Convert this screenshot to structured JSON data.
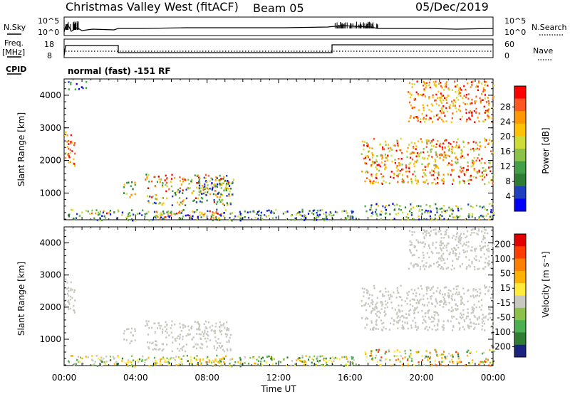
{
  "header": {
    "title": "Christmas Valley West (fitACF)",
    "beam": "Beam 05",
    "date": "05/Dec/2019"
  },
  "top_panels": {
    "nsky_label": "N.Sky",
    "nsearch_label": "N.Search",
    "count_ticks": [
      "10^5",
      "10^0"
    ],
    "freq_label_1": "Freq.",
    "freq_label_2": "[MHz]",
    "freq_ticks": [
      "18",
      "8"
    ],
    "nave_label": "Nave",
    "nave_ticks": [
      "60",
      "0"
    ],
    "cpid_label": "CPID",
    "cpid_text": "normal (fast) -151 RF"
  },
  "colors": {
    "power_scale": [
      "#0000ff",
      "#1f3fbf",
      "#2e7d32",
      "#43a047",
      "#8bc34a",
      "#cddc39",
      "#ffc107",
      "#ff9800",
      "#ff5722",
      "#ff0000"
    ],
    "velocity_scale": [
      "#1a237e",
      "#2e7d32",
      "#4caf50",
      "#8bc34a",
      "#c8c8c0",
      "#ffeb3b",
      "#ffb300",
      "#ff7f00",
      "#ff3d00",
      "#e00000"
    ]
  },
  "chart_data": [
    {
      "type": "heatmap",
      "name": "power",
      "xlabel": "",
      "ylabel": "Slant Range [km]",
      "ytick_labels": [
        "1000",
        "2000",
        "3000",
        "4000"
      ],
      "ylim": [
        180,
        4500
      ],
      "colorbar_label": "Power [dB]",
      "colorbar_ticks": [
        "4",
        "8",
        "12",
        "16",
        "20",
        "24",
        "28"
      ],
      "scatter_regions": [
        {
          "t": [
            0.0,
            0.6
          ],
          "r": [
            1800,
            2900
          ],
          "level": [
            5,
            9
          ]
        },
        {
          "t": [
            3.3,
            4.0
          ],
          "r": [
            900,
            1400
          ],
          "level": [
            2,
            7
          ]
        },
        {
          "t": [
            4.5,
            9.3
          ],
          "r": [
            650,
            1600
          ],
          "level": [
            1,
            9
          ]
        },
        {
          "t": [
            7.5,
            9.5
          ],
          "r": [
            950,
            1500
          ],
          "level": [
            0,
            6
          ]
        },
        {
          "t": [
            1.5,
            2.5
          ],
          "r": [
            400,
            520
          ],
          "level": [
            6,
            9
          ]
        },
        {
          "t": [
            5.0,
            8.8
          ],
          "r": [
            230,
            480
          ],
          "level": [
            6,
            9
          ]
        },
        {
          "t": [
            0.2,
            16.4
          ],
          "r": [
            180,
            520
          ],
          "level": [
            0,
            5
          ]
        },
        {
          "t": [
            16.6,
            24.0
          ],
          "r": [
            1300,
            2700
          ],
          "level": [
            4,
            9
          ]
        },
        {
          "t": [
            19.2,
            24.0
          ],
          "r": [
            3200,
            4450
          ],
          "level": [
            5,
            9
          ]
        },
        {
          "t": [
            16.8,
            24.0
          ],
          "r": [
            200,
            700
          ],
          "level": [
            0,
            6
          ]
        },
        {
          "t": [
            0.2,
            1.2
          ],
          "r": [
            4200,
            4450
          ],
          "level": [
            0,
            3
          ]
        }
      ]
    },
    {
      "type": "heatmap",
      "name": "velocity",
      "xlabel": "Time UT",
      "ylabel": "Slant Range [km]",
      "ytick_labels": [
        "1000",
        "2000",
        "3000",
        "4000"
      ],
      "ylim": [
        180,
        4500
      ],
      "xtick_labels": [
        "00:00",
        "04:00",
        "08:00",
        "12:00",
        "16:00",
        "20:00",
        "00:00"
      ],
      "colorbar_label": "Velocity [m s⁻¹]",
      "colorbar_ticks": [
        "200",
        "100",
        "50",
        "15",
        "-15",
        "-50",
        "-100",
        "-200"
      ],
      "scatter_regions": [
        {
          "t": [
            0.0,
            0.6
          ],
          "r": [
            1800,
            2900
          ],
          "level": [
            4,
            4
          ]
        },
        {
          "t": [
            3.3,
            4.0
          ],
          "r": [
            900,
            1400
          ],
          "level": [
            4,
            4
          ]
        },
        {
          "t": [
            4.5,
            9.3
          ],
          "r": [
            650,
            1600
          ],
          "level": [
            4,
            4
          ]
        },
        {
          "t": [
            1.5,
            3.0
          ],
          "r": [
            300,
            520
          ],
          "level": [
            4,
            4
          ]
        },
        {
          "t": [
            5.0,
            9.0
          ],
          "r": [
            230,
            480
          ],
          "level": [
            5,
            6
          ]
        },
        {
          "t": [
            0.2,
            16.4
          ],
          "r": [
            180,
            520
          ],
          "level": [
            1,
            6
          ]
        },
        {
          "t": [
            16.6,
            24.0
          ],
          "r": [
            1300,
            2700
          ],
          "level": [
            4,
            4
          ]
        },
        {
          "t": [
            19.2,
            24.0
          ],
          "r": [
            3200,
            4450
          ],
          "level": [
            4,
            4
          ]
        },
        {
          "t": [
            16.8,
            24.0
          ],
          "r": [
            200,
            700
          ],
          "level": [
            1,
            8
          ]
        }
      ]
    }
  ]
}
